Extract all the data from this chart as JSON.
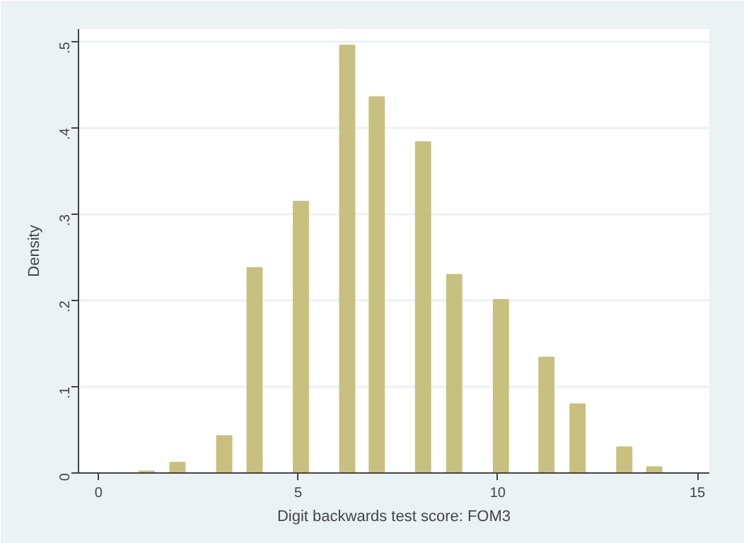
{
  "chart_data": {
    "type": "bar",
    "xlabel": "Digit backwards test score: FOM3",
    "ylabel": "Density",
    "x": [
      1.21,
      1.98,
      3.15,
      3.91,
      5.07,
      6.23,
      6.97,
      8.13,
      8.91,
      10.08,
      11.22,
      12.0,
      13.17,
      13.92
    ],
    "values": [
      0.002,
      0.012,
      0.043,
      0.238,
      0.315,
      0.496,
      0.436,
      0.384,
      0.23,
      0.201,
      0.134,
      0.08,
      0.03,
      0.007
    ],
    "color": "#c8c07e",
    "xlim": [
      -0.5,
      15.3
    ],
    "ylim": [
      0,
      0.515
    ],
    "xticks": [
      0,
      5,
      10,
      15
    ],
    "yticks": [
      0,
      {
        "value": 0.1,
        "label": ".1"
      },
      {
        "value": 0.2,
        "label": ".2"
      },
      {
        "value": 0.3,
        "label": ".3"
      },
      {
        "value": 0.4,
        "label": ".4"
      },
      {
        "value": 0.5,
        "label": ".5"
      }
    ],
    "grid": "y"
  }
}
